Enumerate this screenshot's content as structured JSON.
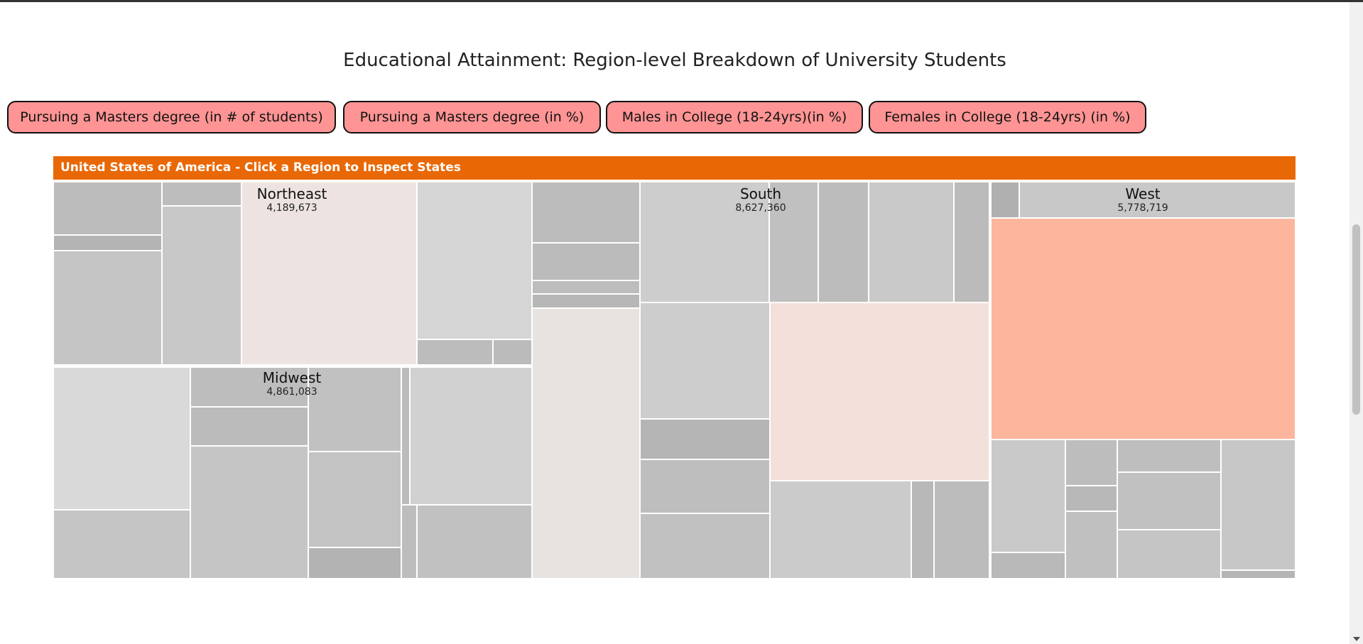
{
  "page_title": "Educational Attainment: Region-level Breakdown of University Students",
  "buttons": [
    "Pursuing a Masters degree (in # of students)",
    "Pursuing a Masters degree (in %)",
    "Males in College (18-24yrs)(in %)",
    "Females in College (18-24yrs) (in %)"
  ],
  "header_text": "United States of America - Click a Region to Inspect States",
  "colors": {
    "header": "#e96806",
    "button_fill": "#ff9494",
    "west_highlight": "#fcb69d",
    "south_highlight": "#f3e0da",
    "northeast_highlight": "#ede4e1",
    "south_column": "#e7e3e1"
  },
  "chart_data": {
    "type": "treemap",
    "title": "Educational Attainment: Region-level Breakdown of University Students",
    "regions": [
      {
        "name": "Northeast",
        "value": 4189673,
        "label": "4,189,673"
      },
      {
        "name": "Midwest",
        "value": 4861083,
        "label": "4,861,083"
      },
      {
        "name": "South",
        "value": 8627360,
        "label": "8,627,360"
      },
      {
        "name": "West",
        "value": 5778719,
        "label": "5,778,719"
      }
    ]
  }
}
